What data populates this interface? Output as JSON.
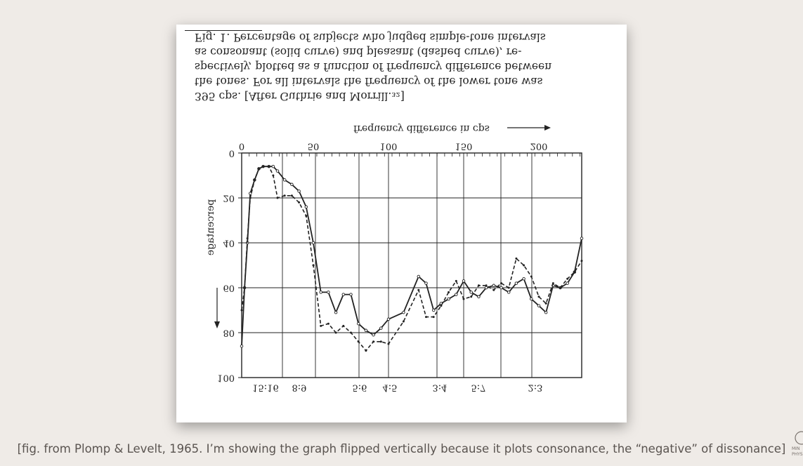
{
  "caption_lines": [
    "395 cps. [After Guthrie and Morrill.₃₂]",
    "the tones. For all intervals the frequency of the lower tone was",
    "spectively, plotted as a function of frequency difference between",
    "as consonant (solid curve) and pleasant (dashed curve), re-",
    "Fig. 1. Percentage of subjects who judged simple-tone intervals"
  ],
  "footer_caption": "[fig. from Plomp & Levelt, 1965. I’m showing the graph flipped vertically because it plots consonance, the “negative” of dissonance]",
  "colors": {
    "background": "#efebe7",
    "card": "#ffffff",
    "ink": "#222222",
    "caption": "#5a5450"
  },
  "chart_data": {
    "type": "line",
    "title": "Fig. 1. Percentage of subjects who judged simple-tone intervals as consonant (solid curve) and pleasant (dashed curve), respectively, plotted as a function of frequency difference between the tones. For all intervals the frequency of the lower tone was 395 cps. [After Guthrie and Morrill.]",
    "xlabel": "frequency difference in cps",
    "ylabel": "percentage",
    "orientation": "flipped vertically",
    "x_axis_note": "non-linear frequency scale",
    "x_ticks": [
      {
        "x": 0,
        "label": "0"
      },
      {
        "x": 50,
        "label": "50"
      },
      {
        "x": 100,
        "label": "100"
      },
      {
        "x": 150,
        "label": "150"
      },
      {
        "x": 200,
        "label": "200"
      }
    ],
    "y_ticks": [
      {
        "y": 0,
        "label": "0"
      },
      {
        "y": 20,
        "label": "20"
      },
      {
        "y": 40,
        "label": "40"
      },
      {
        "y": 60,
        "label": "60"
      },
      {
        "y": 80,
        "label": "80"
      },
      {
        "y": 100,
        "label": "100"
      }
    ],
    "ylim": [
      0,
      100
    ],
    "interval_labels": [
      "15:16",
      "8:9",
      "5:6",
      "4:5",
      "3:4",
      "5:7",
      "2:3"
    ],
    "grid": true,
    "series": [
      {
        "style": "solid",
        "x": [
          0,
          2,
          4,
          6,
          9,
          12,
          15,
          19,
          22,
          25,
          30,
          35,
          40,
          45,
          50,
          55,
          60,
          65,
          70,
          75,
          80,
          85,
          90,
          95,
          100,
          110,
          120,
          125,
          130,
          135,
          140,
          145,
          150,
          155,
          160,
          165,
          170,
          175,
          180,
          185,
          190,
          195,
          200,
          205,
          210,
          215,
          220,
          225,
          230
        ],
        "y": [
          86,
          60,
          40,
          18,
          12,
          7,
          6,
          6,
          6,
          8,
          12,
          14,
          17,
          24,
          40,
          62,
          62,
          71,
          63,
          63,
          76,
          79,
          81,
          78,
          74,
          71,
          55,
          58,
          70,
          67,
          65,
          63,
          57,
          62,
          64,
          60,
          59,
          60,
          62,
          58,
          56,
          65,
          68,
          71,
          59,
          60,
          58,
          53,
          38
        ],
        "values_note": "consonant"
      },
      {
        "style": "dashed",
        "x": [
          0,
          2,
          4,
          6,
          9,
          12,
          15,
          19,
          22,
          25,
          30,
          35,
          40,
          45,
          50,
          55,
          60,
          65,
          70,
          75,
          80,
          85,
          90,
          95,
          100,
          110,
          120,
          125,
          130,
          135,
          140,
          145,
          150,
          155,
          160,
          165,
          170,
          175,
          180,
          185,
          190,
          195,
          200,
          205,
          210,
          215,
          220,
          225,
          230
        ],
        "y": [
          70,
          60,
          38,
          20,
          12,
          7,
          6,
          6,
          10,
          20,
          19,
          19,
          22,
          28,
          50,
          77,
          76,
          80,
          77,
          80,
          84,
          88,
          84,
          84,
          85,
          75,
          61,
          73,
          73,
          68,
          62,
          57,
          65,
          64,
          59,
          59,
          61,
          58,
          60,
          47,
          50,
          55,
          64,
          67,
          58,
          60,
          56,
          53,
          48
        ],
        "values_note": "pleasant"
      }
    ]
  }
}
